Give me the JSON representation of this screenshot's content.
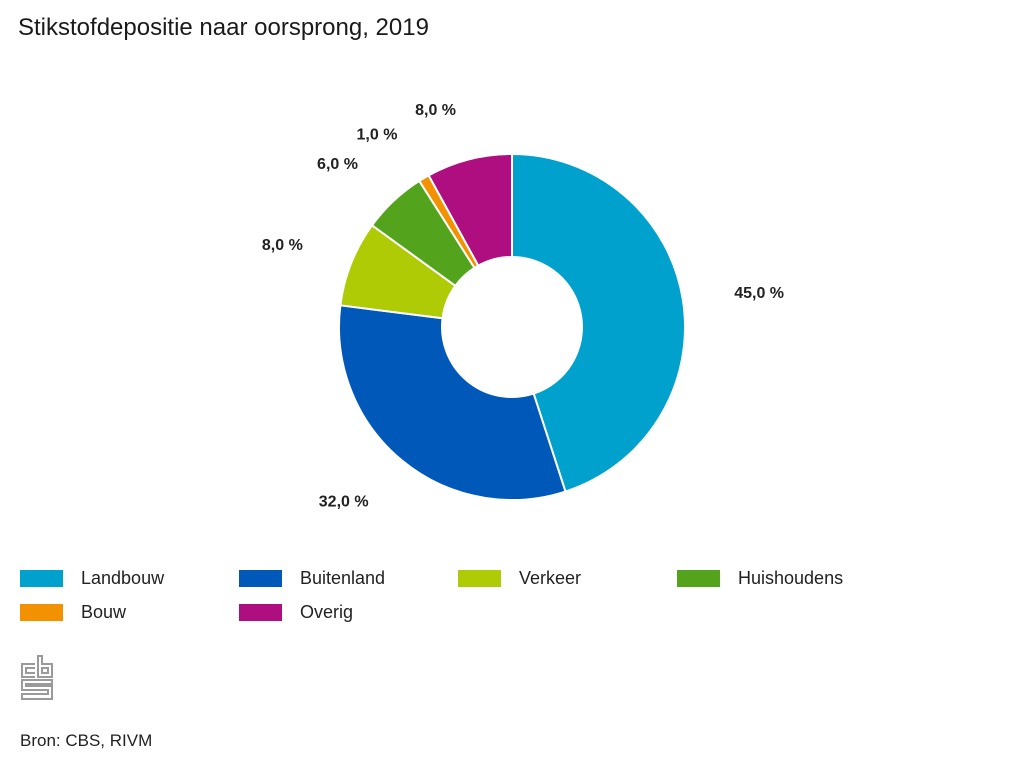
{
  "chart_data": {
    "type": "pie",
    "variant": "donut",
    "title": "Stikstofdepositie naar oorsprong, 2019",
    "unit": "%",
    "slices": [
      {
        "name": "Landbouw",
        "value": 45.0,
        "label": "45,0 %",
        "color": "#00a1cd"
      },
      {
        "name": "Buitenland",
        "value": 32.0,
        "label": "32,0 %",
        "color": "#0058b8"
      },
      {
        "name": "Verkeer",
        "value": 8.0,
        "label": "8,0 %",
        "color": "#afcb05"
      },
      {
        "name": "Huishoudens",
        "value": 6.0,
        "label": "6,0 %",
        "color": "#53a31d"
      },
      {
        "name": "Bouw",
        "value": 1.0,
        "label": "1,0 %",
        "color": "#f39200"
      },
      {
        "name": "Overig",
        "value": 8.0,
        "label": "8,0 %",
        "color": "#af0e80"
      }
    ],
    "legend_position": "bottom",
    "source": "Bron: CBS, RIVM"
  },
  "legend": [
    {
      "label": "Landbouw",
      "color": "#00a1cd"
    },
    {
      "label": "Buitenland",
      "color": "#0058b8"
    },
    {
      "label": "Verkeer",
      "color": "#afcb05"
    },
    {
      "label": "Huishoudens",
      "color": "#53a31d"
    },
    {
      "label": "Bouw",
      "color": "#f39200"
    },
    {
      "label": "Overig",
      "color": "#af0e80"
    }
  ],
  "logo": {
    "icon": "cbs-logo-icon"
  },
  "footer": {
    "source": "Bron: CBS, RIVM"
  }
}
